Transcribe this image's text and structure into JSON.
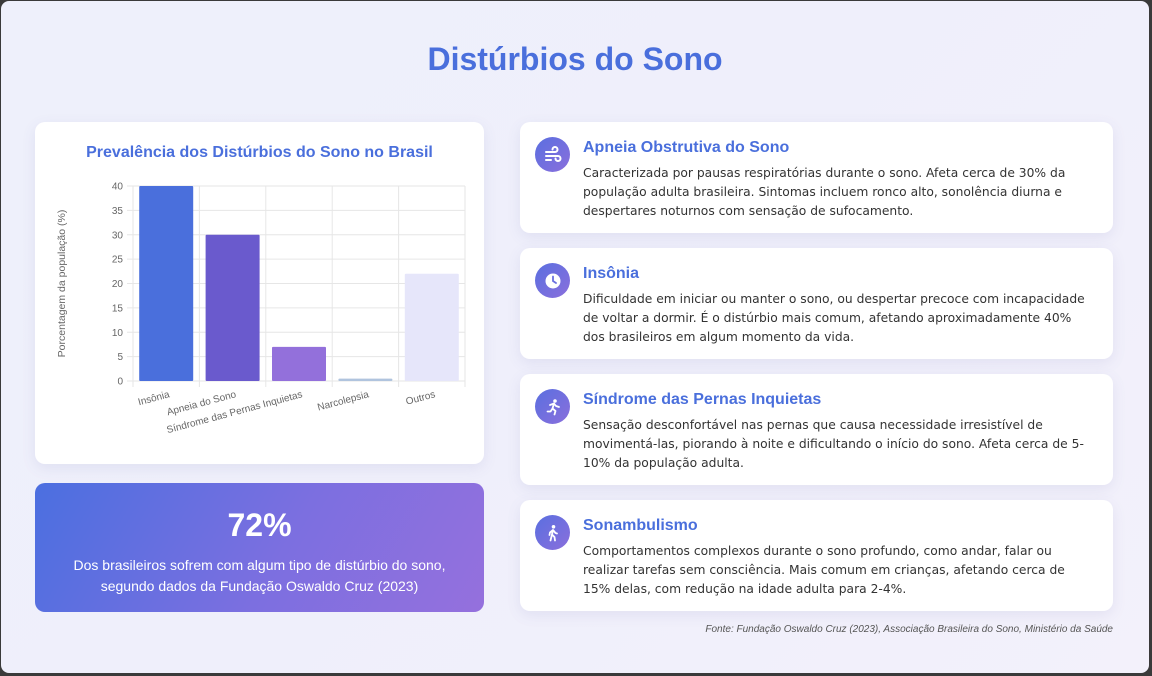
{
  "page": {
    "title": "Distúrbios do Sono"
  },
  "chart_data": {
    "type": "bar",
    "title": "Prevalência dos Distúrbios do Sono no Brasil",
    "ylabel": "Porcentagem da população (%)",
    "xlabel": "",
    "categories": [
      "Insônia",
      "Apneia do Sono",
      "Síndrome das Pernas Inquietas",
      "Narcolepsia",
      "Outros"
    ],
    "values": [
      40,
      30,
      7,
      0.5,
      22
    ],
    "colors": [
      "#4a6fdc",
      "#6a5acd",
      "#9370db",
      "#b0c4de",
      "#e6e6fa"
    ],
    "ylim": [
      0,
      40
    ],
    "yticks": [
      0,
      5,
      10,
      15,
      20,
      25,
      30,
      35,
      40
    ],
    "grid": true
  },
  "stat": {
    "value": "72%",
    "text": "Dos brasileiros sofrem com algum tipo de distúrbio do sono, segundo dados da Fundação Oswaldo Cruz (2023)"
  },
  "disorders": [
    {
      "icon": "wind-icon",
      "title": "Apneia Obstrutiva do Sono",
      "text": "Caracterizada por pausas respiratórias durante o sono. Afeta cerca de 30% da população adulta brasileira. Sintomas incluem ronco alto, sonolência diurna e despertares noturnos com sensação de sufocamento."
    },
    {
      "icon": "clock-icon",
      "title": "Insônia",
      "text": "Dificuldade em iniciar ou manter o sono, ou despertar precoce com incapacidade de voltar a dormir. É o distúrbio mais comum, afetando aproximadamente 40% dos brasileiros em algum momento da vida."
    },
    {
      "icon": "running-icon",
      "title": "Síndrome das Pernas Inquietas",
      "text": "Sensação desconfortável nas pernas que causa necessidade irresistível de movimentá-las, piorando à noite e dificultando o início do sono. Afeta cerca de 5-10% da população adulta."
    },
    {
      "icon": "walking-icon",
      "title": "Sonambulismo",
      "text": "Comportamentos complexos durante o sono profundo, como andar, falar ou realizar tarefas sem consciência. Mais comum em crianças, afetando cerca de 15% delas, com redução na idade adulta para 2-4%."
    }
  ],
  "source": "Fonte: Fundação Oswaldo Cruz (2023), Associação Brasileira do Sono, Ministério da Saúde"
}
